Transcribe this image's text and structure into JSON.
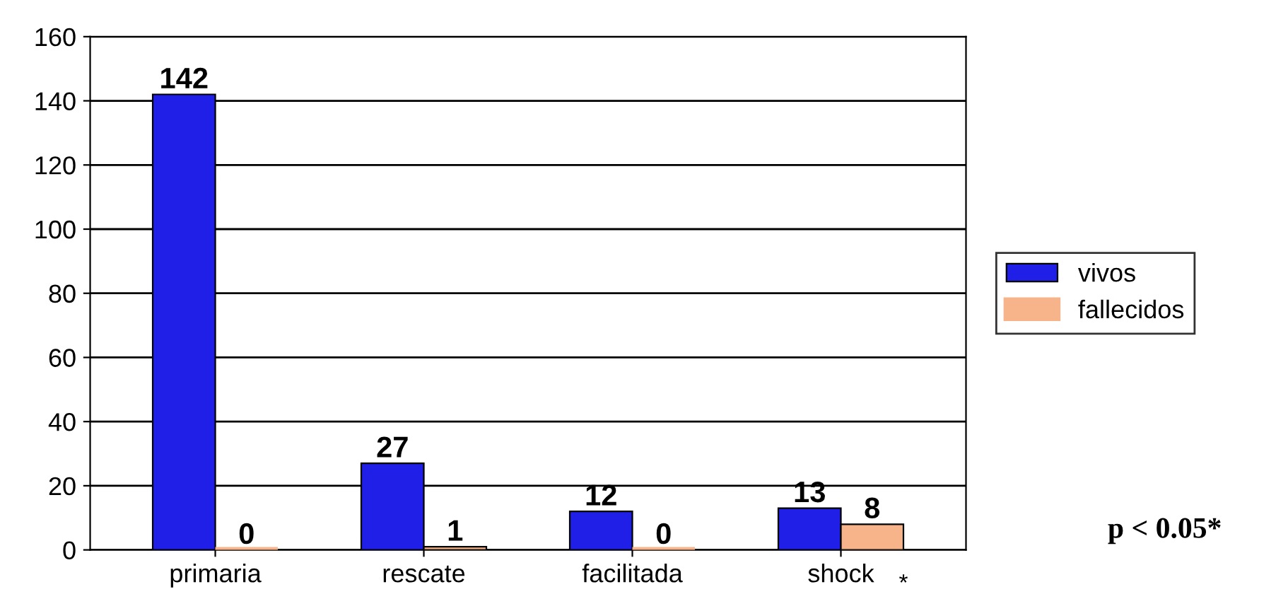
{
  "chart_data": {
    "type": "bar",
    "categories": [
      "primaria",
      "rescate",
      "facilitada",
      "shock"
    ],
    "series": [
      {
        "name": "vivos",
        "color": "#1f1fe8",
        "values": [
          142,
          27,
          12,
          13
        ]
      },
      {
        "name": "fallecidos",
        "color": "#f7b48a",
        "values": [
          0,
          1,
          0,
          8
        ]
      }
    ],
    "ylim": [
      0,
      160
    ],
    "yticks": [
      0,
      20,
      40,
      60,
      80,
      100,
      120,
      140,
      160
    ],
    "grid": "y",
    "legend": "right",
    "data_labels": true,
    "annotations": [
      "p < 0.05*",
      {
        "text": "*",
        "x": "shock",
        "y": 0
      }
    ]
  }
}
